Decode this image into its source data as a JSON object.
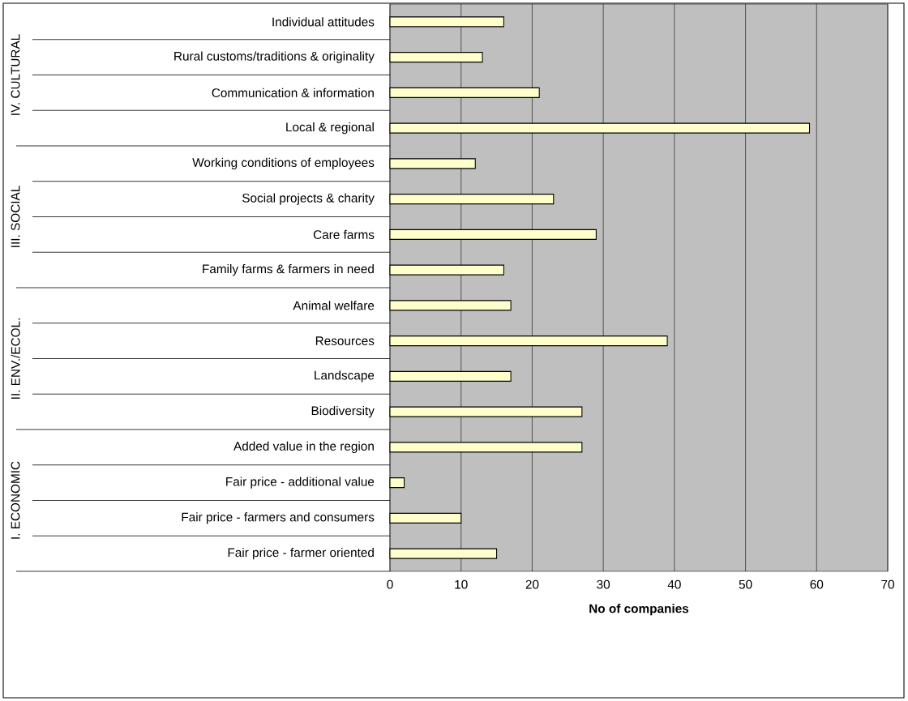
{
  "chart_data": {
    "type": "bar",
    "orientation": "horizontal",
    "categories": [
      "Individual attitudes",
      "Rural customs/traditions & originality",
      "Communication & information",
      "Local & regional",
      "Working conditions of employees",
      "Social projects & charity",
      "Care farms",
      "Family farms & farmers in need",
      "Animal welfare",
      "Resources",
      "Landscape",
      "Biodiversity",
      "Added value in the region",
      "Fair price - additional value",
      "Fair price - farmers and consumers",
      "Fair price - farmer oriented"
    ],
    "values": [
      16,
      13,
      21,
      59,
      12,
      23,
      29,
      16,
      17,
      39,
      17,
      27,
      27,
      2,
      10,
      15
    ],
    "color": "#ffffcc",
    "xlim": [
      0,
      70
    ],
    "xticks": [
      0,
      10,
      20,
      30,
      40,
      50,
      60,
      70
    ],
    "grid": "x",
    "xlabel": "No of companies",
    "annotations": [
      "IV. CULTURAL",
      "III. SOCIAL",
      "II. ENV./ECOL.",
      "I. ECONOMIC"
    ]
  }
}
